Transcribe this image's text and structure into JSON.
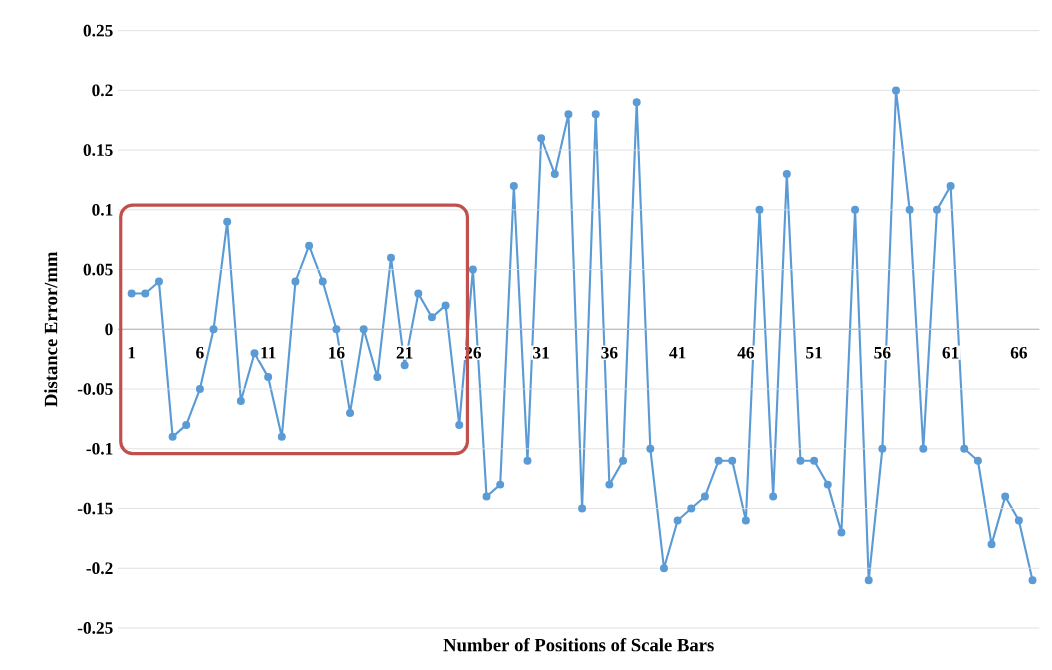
{
  "chart_data": {
    "type": "line",
    "xlabel": "Number of Positions of Scale Bars",
    "ylabel": "Distance Error/mm",
    "categories": [
      "1",
      null,
      null,
      null,
      null,
      "6",
      null,
      null,
      null,
      null,
      "11",
      null,
      null,
      null,
      null,
      "16",
      null,
      null,
      null,
      null,
      "21",
      null,
      null,
      null,
      null,
      "26",
      null,
      null,
      null,
      null,
      "31",
      null,
      null,
      null,
      null,
      "36",
      null,
      null,
      null,
      null,
      "41",
      null,
      null,
      null,
      null,
      "46",
      null,
      null,
      null,
      null,
      "51",
      null,
      null,
      null,
      null,
      "56",
      null,
      null,
      null,
      null,
      "61",
      null,
      null,
      null,
      null,
      "66",
      null
    ],
    "values": [
      0.03,
      0.03,
      0.04,
      -0.09,
      -0.08,
      -0.05,
      0,
      0.09,
      -0.06,
      -0.02,
      -0.04,
      -0.09,
      0.04,
      0.07,
      0.04,
      0,
      -0.07,
      0,
      -0.04,
      0.06,
      -0.03,
      0.03,
      0.01,
      0.02,
      -0.08,
      0.05,
      -0.14,
      -0.13,
      0.12,
      -0.11,
      0.16,
      0.13,
      0.18,
      -0.15,
      0.18,
      -0.13,
      -0.11,
      0.19,
      -0.1,
      -0.2,
      -0.16,
      -0.15,
      -0.14,
      -0.11,
      -0.11,
      -0.16,
      0.1,
      -0.14,
      0.13,
      -0.11,
      -0.11,
      -0.13,
      -0.17,
      0.1,
      -0.21,
      -0.1,
      0.2,
      0.1,
      -0.1,
      0.1,
      0.12,
      -0.1,
      -0.11,
      -0.18,
      -0.14,
      -0.16,
      -0.21
    ],
    "color": "#5b9bd5",
    "marker": "circle",
    "line_style": "solid",
    "grid": "y",
    "ylim": [
      -0.25,
      0.25
    ],
    "yticks": [
      0.25,
      0.2,
      0.15,
      0.1,
      0.05,
      0,
      -0.05,
      -0.1,
      -0.15,
      -0.2,
      -0.25
    ]
  }
}
